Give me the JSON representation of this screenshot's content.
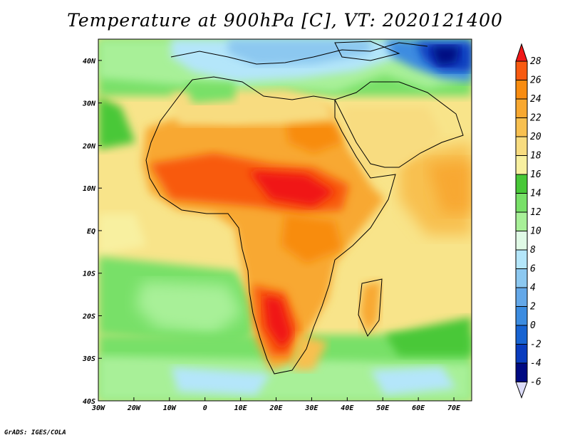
{
  "title": "Temperature at 900hPa [C], VT: 2020121400",
  "credit": "GrADS: IGES/COLA",
  "lon_labels": [
    "30W",
    "20W",
    "10W",
    "0",
    "10E",
    "20E",
    "30E",
    "40E",
    "50E",
    "60E",
    "70E"
  ],
  "lat_labels": [
    "40N",
    "30N",
    "20N",
    "10N",
    "EQ",
    "10S",
    "20S",
    "30S",
    "40S"
  ],
  "map": {
    "lon_range": [
      -30,
      75
    ],
    "lat_range": [
      -40,
      45
    ],
    "lon_ticks": [
      -30,
      -20,
      -10,
      0,
      10,
      20,
      30,
      40,
      50,
      60,
      70
    ],
    "lat_ticks": [
      40,
      30,
      20,
      10,
      0,
      -10,
      -20,
      -30,
      -40
    ]
  },
  "colorbar": {
    "labels": [
      "28",
      "26",
      "24",
      "22",
      "20",
      "18",
      "16",
      "14",
      "12",
      "10",
      "8",
      "6",
      "4",
      "2",
      "0",
      "-2",
      "-4",
      "-6"
    ],
    "colors": [
      "#f01818",
      "#f85a10",
      "#f88c10",
      "#f8a830",
      "#f8c050",
      "#f8dc80",
      "#f8f0a0",
      "#48c838",
      "#78e068",
      "#a8f098",
      "#e0fae6",
      "#b4e6fa",
      "#8cc8f0",
      "#64a8e8",
      "#3c8ce0",
      "#1864d2",
      "#0a3cbe",
      "#000a82"
    ]
  },
  "colors": {
    "land_outline": "#000000",
    "frame": "#000000"
  }
}
